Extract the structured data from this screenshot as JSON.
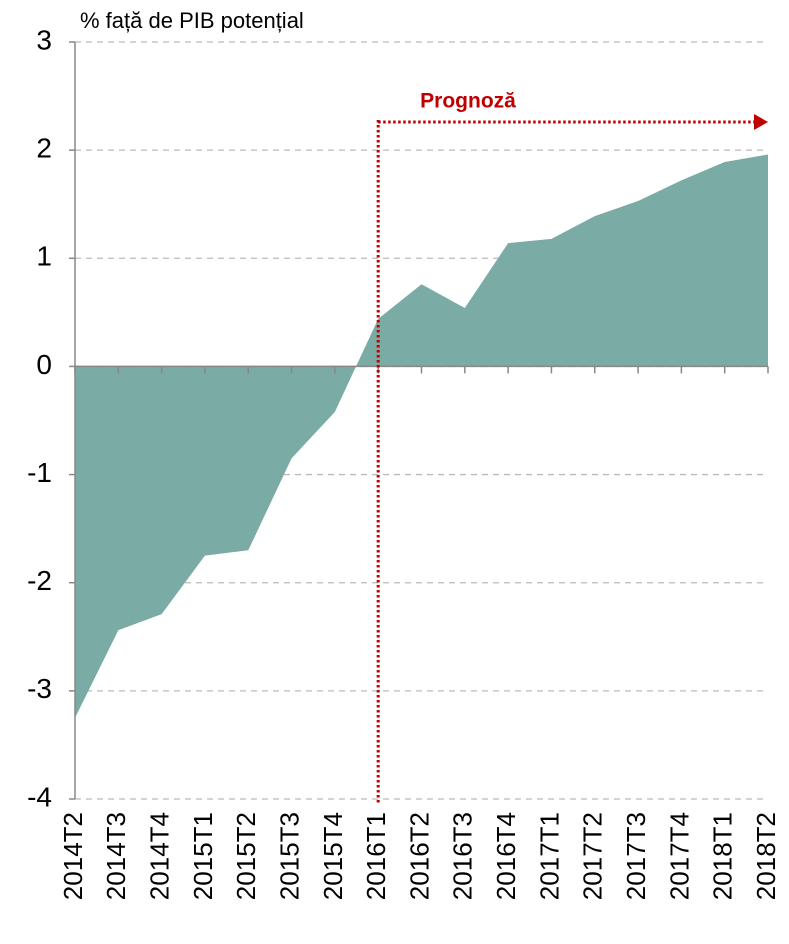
{
  "chart_data": {
    "type": "area",
    "y_axis_label": "% față de PIB potențial",
    "annotation": "Prognoză",
    "categories": [
      "2014T2",
      "2014T3",
      "2014T4",
      "2015T1",
      "2015T2",
      "2015T3",
      "2015T4",
      "2016T1",
      "2016T2",
      "2016T3",
      "2016T4",
      "2017T1",
      "2017T2",
      "2017T3",
      "2017T4",
      "2018T1",
      "2018T2"
    ],
    "values": [
      -3.25,
      -2.44,
      -2.29,
      -1.75,
      -1.7,
      -0.85,
      -0.42,
      0.44,
      0.76,
      0.54,
      1.14,
      1.18,
      1.39,
      1.53,
      1.72,
      1.89,
      1.96
    ],
    "color": "#7aaba4",
    "annotation_color": "#c00000",
    "ylim": [
      -4,
      3
    ],
    "yticks": [
      -4,
      -3,
      -2,
      -1,
      0,
      1,
      2,
      3
    ],
    "grid": true
  }
}
